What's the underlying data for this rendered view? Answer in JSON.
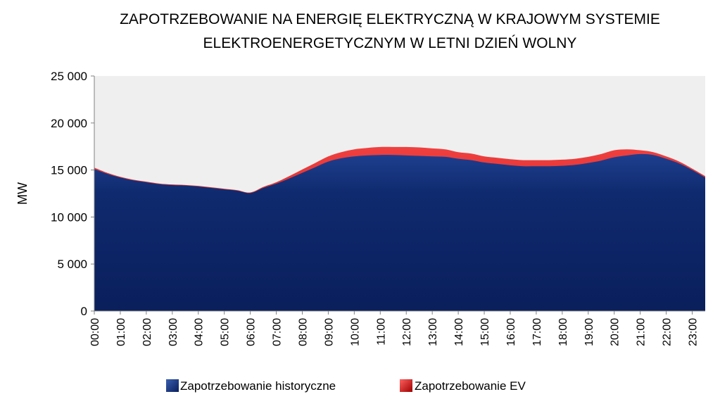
{
  "chart_data": {
    "type": "area",
    "title": [
      "ZAPOTRZEBOWANIE NA ENERGIĘ ELEKTRYCZNĄ W KRAJOWYM SYSTEMIE",
      "ELEKTROENERGETYCZNYM W LETNI DZIEŃ WOLNY"
    ],
    "xlabel": "",
    "ylabel": "MW",
    "ylim": [
      0,
      25000
    ],
    "y_ticks": [
      0,
      5000,
      10000,
      15000,
      20000,
      25000
    ],
    "y_tick_labels": [
      "0",
      "5 000",
      "10 000",
      "15 000",
      "20 000",
      "25 000"
    ],
    "categories": [
      "00:00",
      "00:30",
      "01:00",
      "01:30",
      "02:00",
      "02:30",
      "03:00",
      "03:30",
      "04:00",
      "04:30",
      "05:00",
      "05:30",
      "06:00",
      "06:30",
      "07:00",
      "07:30",
      "08:00",
      "08:30",
      "09:00",
      "09:30",
      "10:00",
      "10:30",
      "11:00",
      "11:30",
      "12:00",
      "12:30",
      "13:00",
      "13:30",
      "14:00",
      "14:30",
      "15:00",
      "15:30",
      "16:00",
      "16:30",
      "17:00",
      "17:30",
      "18:00",
      "18:30",
      "19:00",
      "19:30",
      "20:00",
      "20:30",
      "21:00",
      "21:30",
      "22:00",
      "22:30",
      "23:00",
      "23:30"
    ],
    "x_tick_labels": [
      "00:00",
      "01:00",
      "02:00",
      "03:00",
      "04:00",
      "05:00",
      "06:00",
      "07:00",
      "08:00",
      "09:00",
      "10:00",
      "11:00",
      "12:00",
      "13:00",
      "14:00",
      "15:00",
      "16:00",
      "17:00",
      "18:00",
      "19:00",
      "20:00",
      "21:00",
      "22:00",
      "23:00"
    ],
    "stacked": true,
    "series": [
      {
        "name": "Zapotrzebowanie historyczne",
        "color": "#0f2870",
        "values": [
          15100,
          14600,
          14200,
          13900,
          13700,
          13500,
          13400,
          13350,
          13250,
          13100,
          12950,
          12800,
          12550,
          13100,
          13550,
          14100,
          14700,
          15300,
          15900,
          16250,
          16450,
          16550,
          16600,
          16600,
          16550,
          16500,
          16450,
          16400,
          16200,
          16050,
          15800,
          15650,
          15500,
          15400,
          15400,
          15400,
          15450,
          15550,
          15750,
          16000,
          16350,
          16550,
          16700,
          16600,
          16200,
          15700,
          15000,
          14200
        ]
      },
      {
        "name": "Zapotrzebowanie EV",
        "color": "#d42020",
        "values": [
          150,
          100,
          80,
          70,
          60,
          60,
          60,
          60,
          60,
          60,
          60,
          60,
          60,
          100,
          150,
          250,
          350,
          450,
          550,
          650,
          750,
          800,
          850,
          850,
          900,
          900,
          850,
          800,
          700,
          700,
          650,
          650,
          650,
          650,
          650,
          650,
          650,
          650,
          650,
          700,
          750,
          650,
          400,
          300,
          250,
          200,
          150,
          150
        ]
      }
    ],
    "plot_background": "#efefef",
    "legend_position": "bottom",
    "grid": false
  }
}
